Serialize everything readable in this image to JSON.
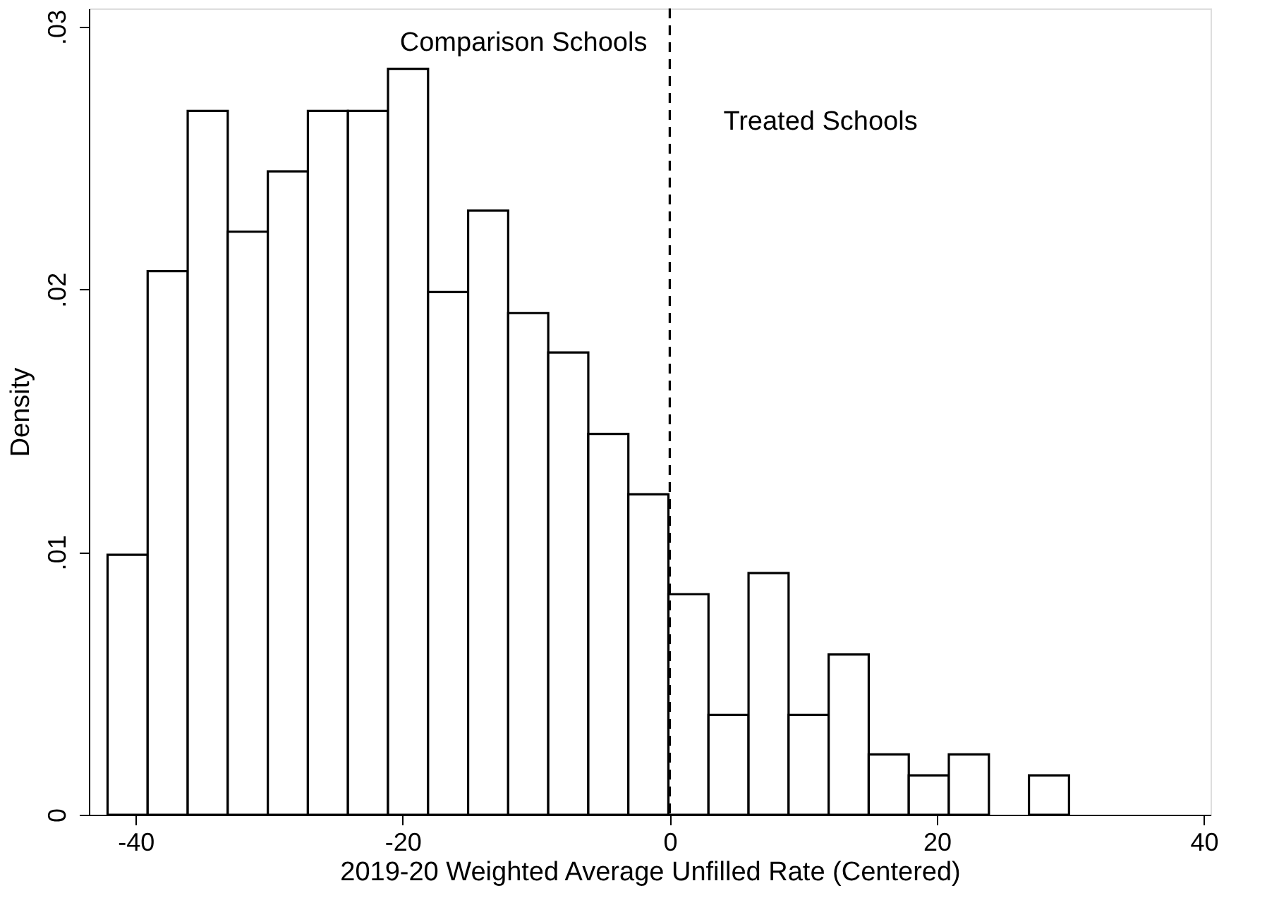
{
  "chart_data": {
    "type": "histogram",
    "xlabel": "2019-20 Weighted Average Unfilled Rate (Centered)",
    "ylabel": "Density",
    "bins": [
      -42.1,
      -39.1,
      -36.1,
      -33.1,
      -30.1,
      -27.1,
      -24.1,
      -21.1,
      -18.1,
      -15.1,
      -12.1,
      -9.1,
      -6.1,
      -3.1,
      -0.1,
      2.9,
      5.9,
      8.9,
      11.9,
      14.9,
      17.9,
      20.9,
      23.9,
      26.9,
      29.9
    ],
    "values": [
      0.0099,
      0.0207,
      0.0268,
      0.0222,
      0.0245,
      0.0268,
      0.0268,
      0.0284,
      0.0199,
      0.023,
      0.0191,
      0.0176,
      0.0145,
      0.0122,
      0.0084,
      0.0038,
      0.0092,
      0.0038,
      0.0061,
      0.0023,
      0.0015,
      0.0023,
      0,
      0.0015
    ],
    "color": "#ffffff",
    "xlim": [
      -43.5,
      40.5
    ],
    "xticks": [
      -40,
      -20,
      0,
      20,
      40
    ],
    "ylim": [
      0,
      0.0307
    ],
    "yticks": [
      {
        "value": 0,
        "label": "0"
      },
      {
        "value": 0.01,
        "label": ".01"
      },
      {
        "value": 0.02,
        "label": ".02"
      },
      {
        "value": 0.03,
        "label": ".03"
      }
    ],
    "ref_lines": [
      {
        "axis": "x",
        "value": 0,
        "line_style": "dashed"
      }
    ],
    "annotations": [
      "Comparison Schools",
      "Treated Schools"
    ],
    "grid": false
  }
}
